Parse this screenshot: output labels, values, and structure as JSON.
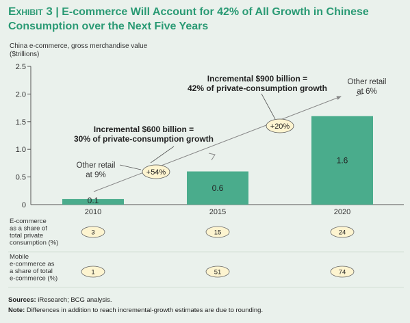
{
  "title": {
    "exhibit": "Exhibit 3",
    "separator": "|",
    "headline_line1": "E-commerce Will Account for 42% of All Growth in Chinese",
    "headline_line2": "Consumption over the Next Five Years"
  },
  "chart_data": {
    "type": "bar",
    "ylabel_line1": "China e-commerce, gross merchandise value",
    "ylabel_line2": "($trillions)",
    "categories": [
      "2010",
      "2015",
      "2020"
    ],
    "values": [
      0.1,
      0.6,
      1.6
    ],
    "value_labels": [
      "0.1",
      "0.6",
      "1.6"
    ],
    "ylim": [
      0,
      2.5
    ],
    "yticks": [
      "0",
      "0.5",
      "1.0",
      "1.5",
      "2.0",
      "2.5"
    ],
    "bar_color": "#4aac8c",
    "growth_badges": [
      "+54%",
      "+20%"
    ],
    "annotations": {
      "inc600_line1": "Incremental $600 billion =",
      "inc600_line2": "30% of private-consumption growth",
      "inc900_line1": "Incremental $900 billion =",
      "inc900_line2": "42% of private-consumption growth",
      "other_retail_left_line1": "Other retail",
      "other_retail_left_line2": "at 9%",
      "other_retail_right_line1": "Other retail",
      "other_retail_right_line2": "at 6%"
    },
    "table_rows": [
      {
        "label_lines": [
          "E-commerce",
          "as a share of",
          "total private",
          "consumption (%)"
        ],
        "values": [
          "3",
          "15",
          "24"
        ]
      },
      {
        "label_lines": [
          "Mobile",
          "e-commerce as",
          "a share of total",
          "e-commerce (%)"
        ],
        "values": [
          "1",
          "51",
          "74"
        ]
      }
    ]
  },
  "footer": {
    "sources_label": "Sources:",
    "sources_text": "iResearch; BCG analysis.",
    "note_label": "Note:",
    "note_text": "Differences in addition to reach incremental-growth estimates are due to rounding."
  }
}
